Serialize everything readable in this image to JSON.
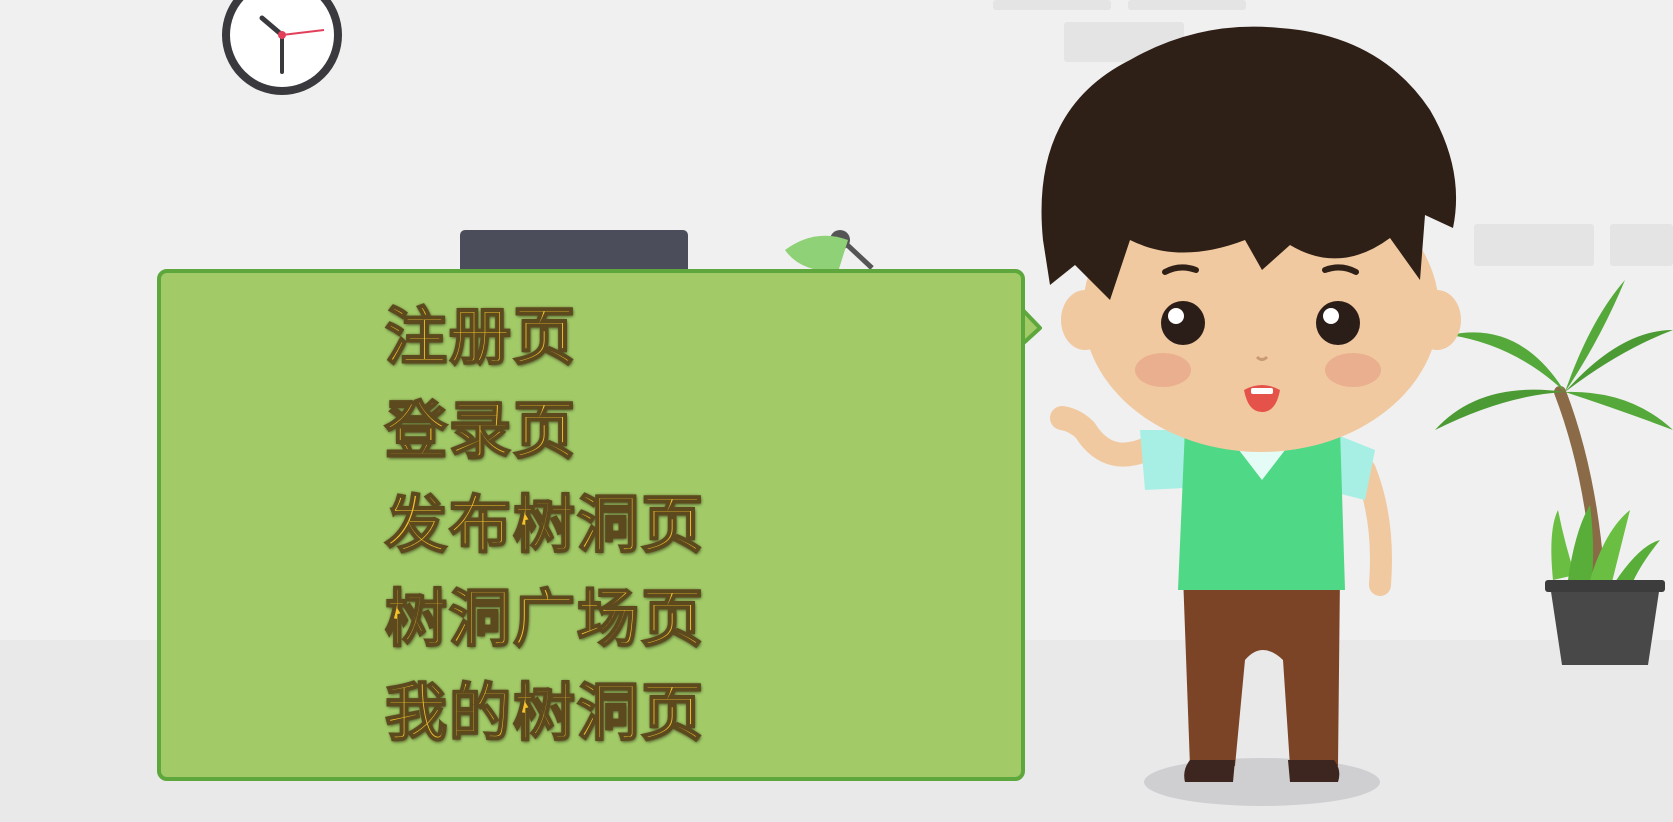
{
  "board": {
    "items": [
      {
        "label": "注册页"
      },
      {
        "label": "登录页"
      },
      {
        "label": "发布树洞页"
      },
      {
        "label": "树洞广场页"
      },
      {
        "label": "我的树洞页"
      }
    ]
  },
  "colors": {
    "board_fill": "#a2cb68",
    "board_border": "#5ea73c",
    "text_fill": "#f5c22c",
    "text_outline": "#5c4a1e",
    "shirt": "#4fd886",
    "hair": "#2e1f17",
    "skin": "#f1c9a0",
    "pants": "#7c4426"
  },
  "icons": {
    "clock": "clock-icon",
    "plant": "potted-palm-icon",
    "lamp": "desk-lamp-icon"
  }
}
